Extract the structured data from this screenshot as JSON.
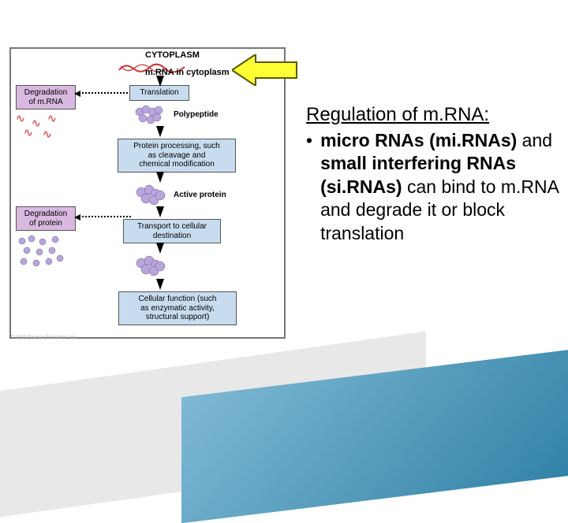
{
  "diagram": {
    "cytoplasm": "CYTOPLASM",
    "mrna_in_cytoplasm": "m.RNA in cytoplasm",
    "deg_mrna": "Degradation\nof m.RNA",
    "translation": "Translation",
    "polypeptide": "Polypeptide",
    "protein_processing": "Protein processing, such\nas cleavage and\nchemical modification",
    "active_protein": "Active protein",
    "deg_protein": "Degradation\nof protein",
    "transport": "Transport to cellular\ndestination",
    "cell_function": "Cellular function (such\nas enzymatic activity,\nstructural support)",
    "yellow_arrow_fill": "#ffff33",
    "yellow_arrow_stroke": "#5a5a00",
    "blue_box_bg": "#c8dcf0",
    "purple_box_bg": "#d9b9e0",
    "protein_fill": "#b8a6db",
    "mrna_color": "#cc3333"
  },
  "text": {
    "title": "Regulation of m.RNA:",
    "bullet": "micro RNAs (mi.RNAs)",
    "bullet_rest1": " and ",
    "bold2": "small interfering RNAs (si.RNAs)",
    "bullet_rest2": " can bind to m.RNA and degrade it or block translation"
  },
  "copyright": "© 2011 Pearson Education, Inc."
}
